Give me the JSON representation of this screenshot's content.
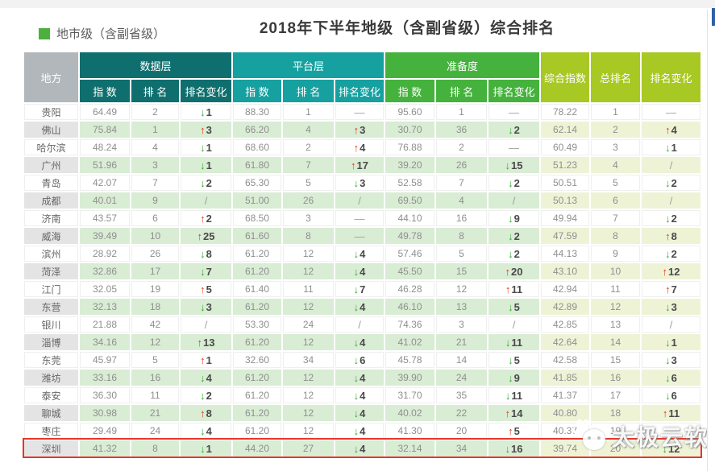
{
  "page": {
    "legend_label": "地市级（含副省级）",
    "title": "2018年下半年地级（含副省级）综合排名"
  },
  "colors": {
    "legend_square": "#4caf3e",
    "corner_bg": "#b1b7ba",
    "group_data_layer": "#0f6f6e",
    "group_platform_layer": "#16a0a0",
    "group_readiness": "#44b23c",
    "summary": "#a8c823",
    "row_even_place": "#e4e4e4",
    "row_even_green": "#d9ecd4",
    "row_even_yellow": "#eef3d6",
    "up_arrow": "#e2391b",
    "down_arrow": "#3aa935",
    "highlight_border": "#e8352c"
  },
  "watermark": {
    "text": "太极云软"
  },
  "chart_data": {
    "type": "table",
    "title": "2018年下半年地级（含副省级）综合排名",
    "legend": "地市级（含副省级）",
    "corner_header": "地方",
    "groups": [
      {
        "label": "数据层",
        "color": "#0f6f6e"
      },
      {
        "label": "平台层",
        "color": "#16a0a0"
      },
      {
        "label": "准备度",
        "color": "#44b23c"
      }
    ],
    "group_subcols": [
      "指 数",
      "排 名",
      "排名变化"
    ],
    "summary_cols": [
      "综合指数",
      "总排名",
      "排名变化"
    ],
    "highlighted_row": "深圳",
    "rows": [
      {
        "place": "贵阳",
        "values": [
          "64.49",
          "2",
          "↓1",
          "88.30",
          "1",
          "—",
          "95.60",
          "1",
          "—",
          "78.22",
          "1",
          "—"
        ]
      },
      {
        "place": "佛山",
        "values": [
          "75.84",
          "1",
          "↑3",
          "66.20",
          "4",
          "↑3",
          "30.70",
          "36",
          "↓2",
          "62.14",
          "2",
          "↑4"
        ]
      },
      {
        "place": "哈尔滨",
        "values": [
          "48.24",
          "4",
          "↓1",
          "68.60",
          "2",
          "↑4",
          "76.88",
          "2",
          "—",
          "60.49",
          "3",
          "↓1"
        ]
      },
      {
        "place": "广州",
        "values": [
          "51.96",
          "3",
          "↓1",
          "61.80",
          "7",
          "↑17",
          "39.20",
          "26",
          "↓15",
          "51.23",
          "4",
          "/"
        ]
      },
      {
        "place": "青岛",
        "values": [
          "42.07",
          "7",
          "↓2",
          "65.30",
          "5",
          "↓3",
          "52.58",
          "7",
          "↓2",
          "50.51",
          "5",
          "↓2"
        ]
      },
      {
        "place": "成都",
        "values": [
          "40.01",
          "9",
          "/",
          "51.00",
          "26",
          "/",
          "69.50",
          "4",
          "/",
          "50.13",
          "6",
          "/"
        ]
      },
      {
        "place": "济南",
        "values": [
          "43.57",
          "6",
          "↑2",
          "68.50",
          "3",
          "—",
          "44.10",
          "16",
          "↓9",
          "49.94",
          "7",
          "↓2"
        ]
      },
      {
        "place": "威海",
        "values": [
          "39.49",
          "10",
          "↑25",
          "61.60",
          "8",
          "—",
          "49.78",
          "8",
          "↓2",
          "47.59",
          "8",
          "↑8"
        ]
      },
      {
        "place": "滨州",
        "values": [
          "28.92",
          "26",
          "↓8",
          "61.20",
          "12",
          "↓4",
          "57.46",
          "5",
          "↓2",
          "44.13",
          "9",
          "↓2"
        ]
      },
      {
        "place": "菏泽",
        "values": [
          "32.86",
          "17",
          "↓7",
          "61.20",
          "12",
          "↓4",
          "45.50",
          "15",
          "↑20",
          "43.10",
          "10",
          "↑12"
        ]
      },
      {
        "place": "江门",
        "values": [
          "32.05",
          "19",
          "↑5",
          "61.40",
          "11",
          "↓7",
          "46.28",
          "12",
          "↑11",
          "42.94",
          "11",
          "↑7"
        ]
      },
      {
        "place": "东营",
        "values": [
          "32.13",
          "18",
          "↓3",
          "61.20",
          "12",
          "↓4",
          "46.10",
          "13",
          "↓5",
          "42.89",
          "12",
          "↓3"
        ]
      },
      {
        "place": "银川",
        "values": [
          "21.88",
          "42",
          "/",
          "53.30",
          "24",
          "/",
          "74.36",
          "3",
          "/",
          "42.85",
          "13",
          "/"
        ]
      },
      {
        "place": "淄博",
        "values": [
          "34.16",
          "12",
          "↑13",
          "61.20",
          "12",
          "↓4",
          "41.02",
          "21",
          "↓11",
          "42.64",
          "14",
          "↓1"
        ]
      },
      {
        "place": "东莞",
        "values": [
          "45.97",
          "5",
          "↑1",
          "32.60",
          "34",
          "↓6",
          "45.78",
          "14",
          "↓5",
          "42.58",
          "15",
          "↓3"
        ]
      },
      {
        "place": "潍坊",
        "values": [
          "33.16",
          "16",
          "↓4",
          "61.20",
          "12",
          "↓4",
          "39.90",
          "24",
          "↓9",
          "41.85",
          "16",
          "↓6"
        ]
      },
      {
        "place": "泰安",
        "values": [
          "36.30",
          "11",
          "↓2",
          "61.20",
          "12",
          "↓4",
          "31.70",
          "35",
          "↓11",
          "41.37",
          "17",
          "↓6"
        ]
      },
      {
        "place": "聊城",
        "values": [
          "30.98",
          "21",
          "↑8",
          "61.20",
          "12",
          "↓4",
          "40.02",
          "22",
          "↑14",
          "40.80",
          "18",
          "↑11"
        ]
      },
      {
        "place": "枣庄",
        "values": [
          "29.49",
          "24",
          "↓4",
          "61.20",
          "12",
          "↓4",
          "41.30",
          "20",
          "↑5",
          "40.37",
          "19",
          ""
        ]
      },
      {
        "place": "深圳",
        "values": [
          "41.32",
          "8",
          "↓1",
          "44.20",
          "27",
          "↓4",
          "32.14",
          "34",
          "↓16",
          "39.74",
          "20",
          "↓12"
        ]
      }
    ]
  }
}
